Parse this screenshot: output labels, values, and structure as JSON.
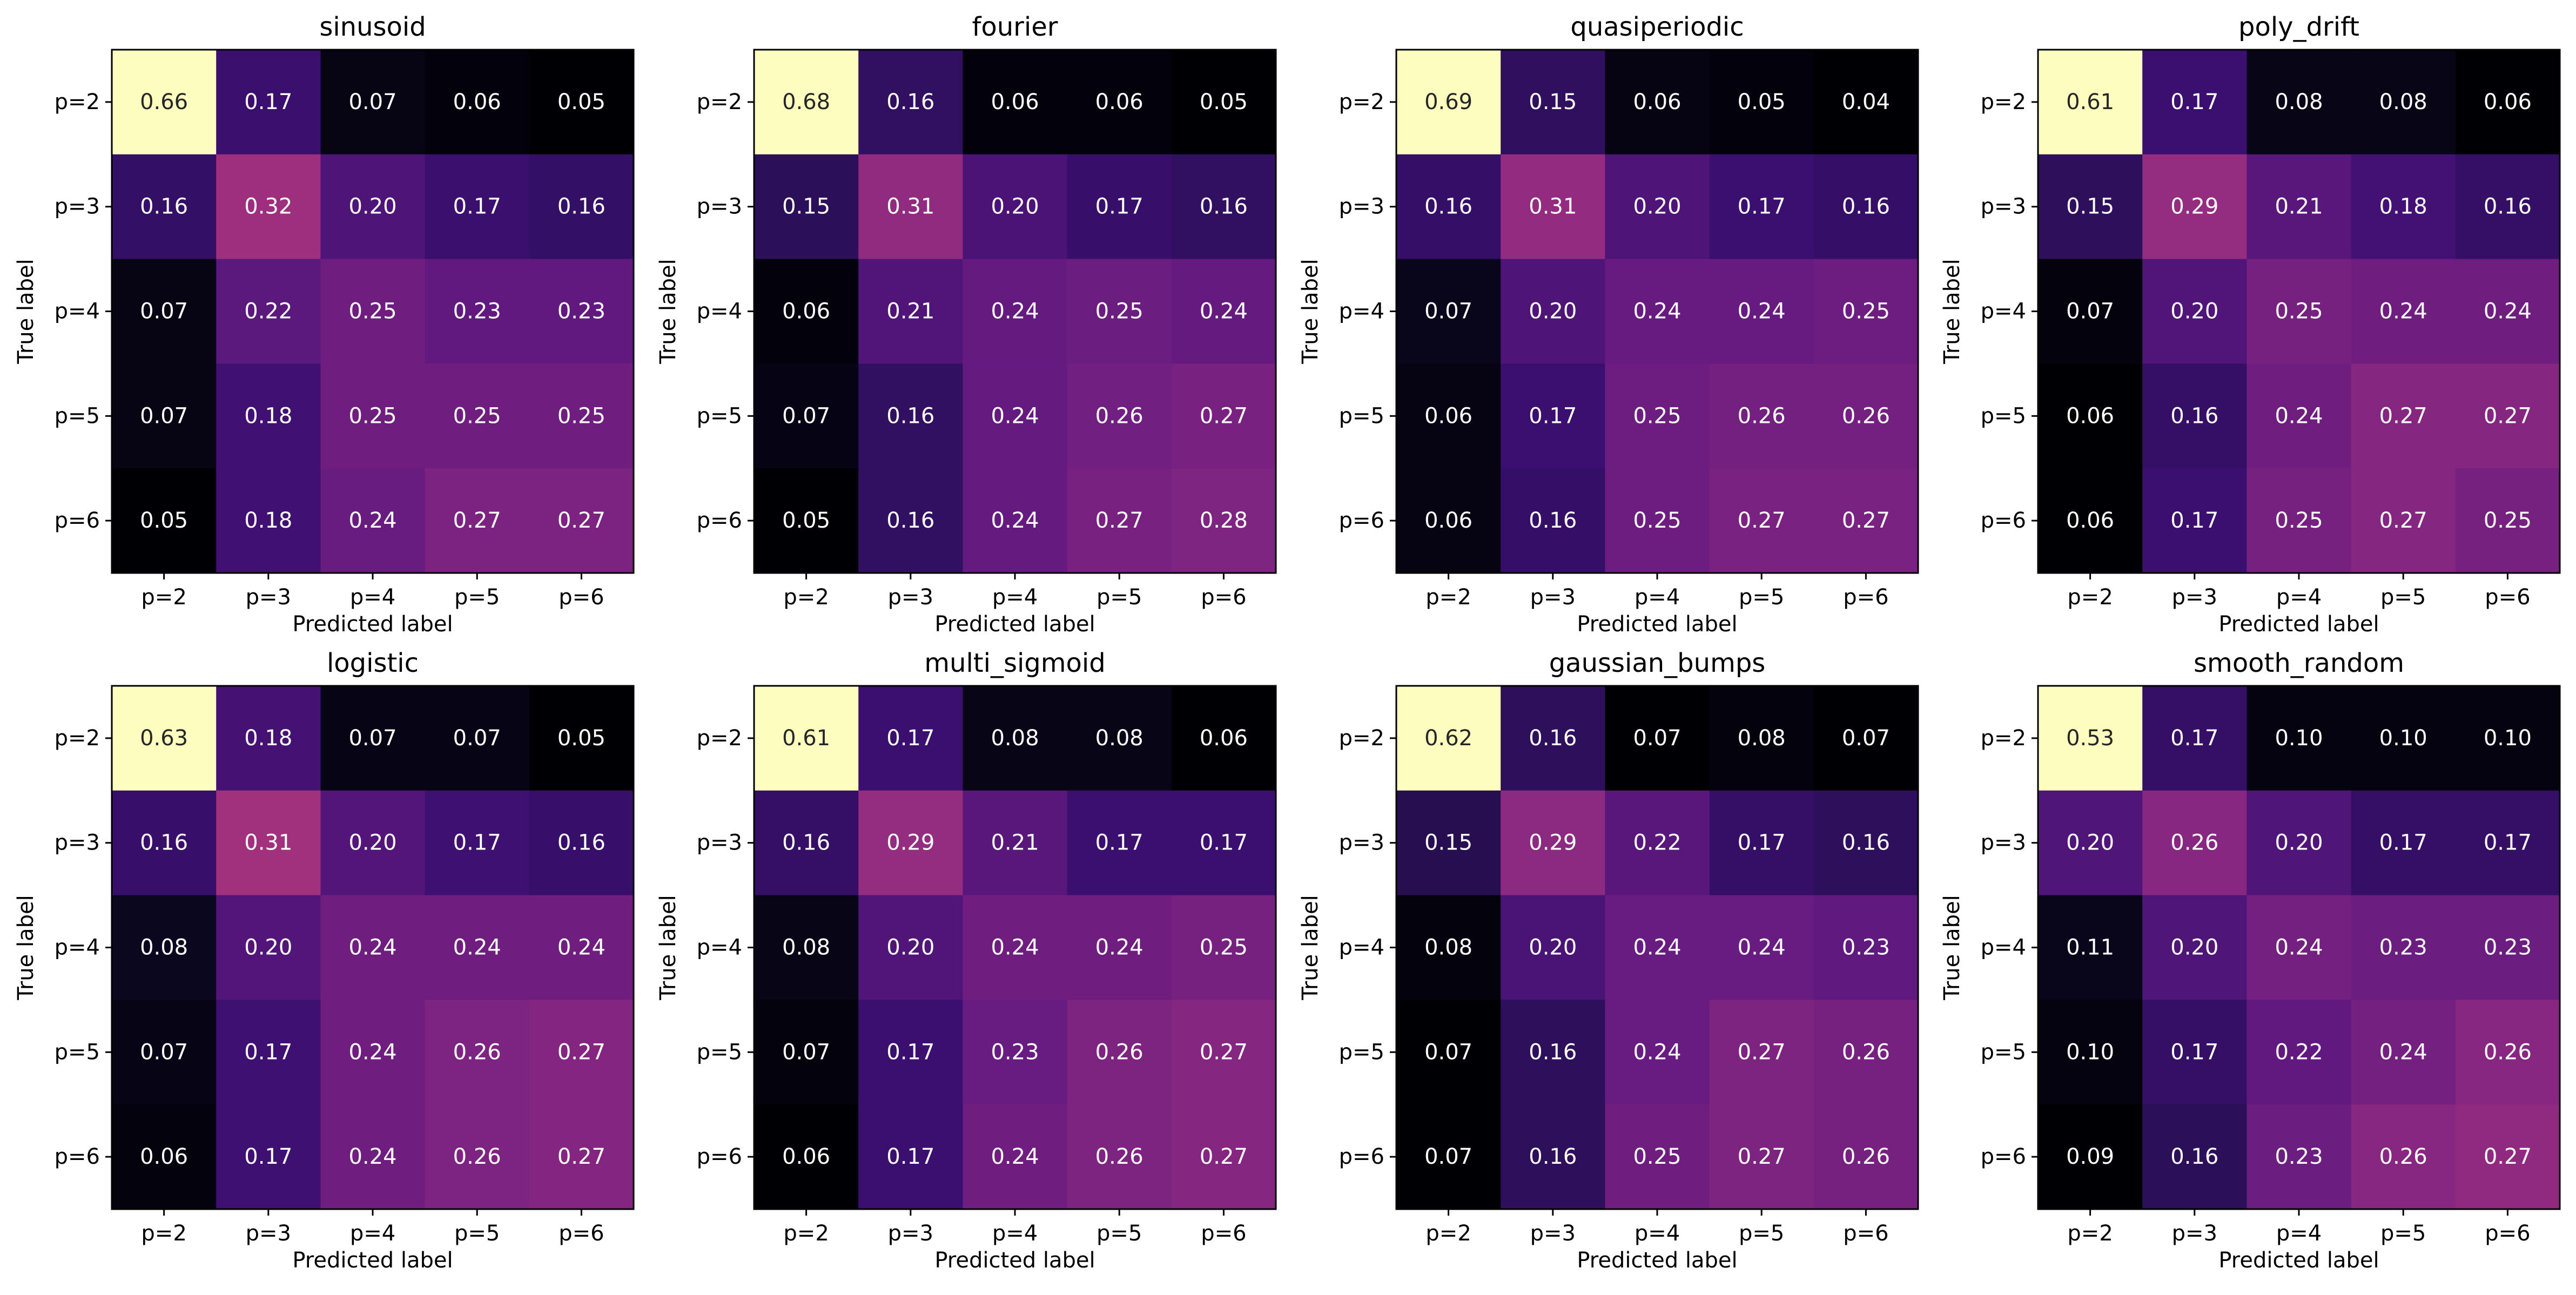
{
  "chart_data": [
    {
      "type": "heatmap",
      "title": "sinusoid",
      "xlabel": "Predicted label",
      "ylabel": "True label",
      "x_categories": [
        "p=2",
        "p=3",
        "p=4",
        "p=5",
        "p=6"
      ],
      "y_categories": [
        "p=2",
        "p=3",
        "p=4",
        "p=5",
        "p=6"
      ],
      "values": [
        [
          0.66,
          0.17,
          0.07,
          0.06,
          0.05
        ],
        [
          0.16,
          0.32,
          0.2,
          0.17,
          0.16
        ],
        [
          0.07,
          0.22,
          0.25,
          0.23,
          0.23
        ],
        [
          0.07,
          0.18,
          0.25,
          0.25,
          0.25
        ],
        [
          0.05,
          0.18,
          0.24,
          0.27,
          0.27
        ]
      ],
      "colormap": "magma",
      "value_format": "0.00"
    },
    {
      "type": "heatmap",
      "title": "fourier",
      "xlabel": "Predicted label",
      "ylabel": "True label",
      "x_categories": [
        "p=2",
        "p=3",
        "p=4",
        "p=5",
        "p=6"
      ],
      "y_categories": [
        "p=2",
        "p=3",
        "p=4",
        "p=5",
        "p=6"
      ],
      "values": [
        [
          0.68,
          0.16,
          0.06,
          0.06,
          0.05
        ],
        [
          0.15,
          0.31,
          0.2,
          0.17,
          0.16
        ],
        [
          0.06,
          0.21,
          0.24,
          0.25,
          0.24
        ],
        [
          0.07,
          0.16,
          0.24,
          0.26,
          0.27
        ],
        [
          0.05,
          0.16,
          0.24,
          0.27,
          0.28
        ]
      ],
      "colormap": "magma",
      "value_format": "0.00"
    },
    {
      "type": "heatmap",
      "title": "quasiperiodic",
      "xlabel": "Predicted label",
      "ylabel": "True label",
      "x_categories": [
        "p=2",
        "p=3",
        "p=4",
        "p=5",
        "p=6"
      ],
      "y_categories": [
        "p=2",
        "p=3",
        "p=4",
        "p=5",
        "p=6"
      ],
      "values": [
        [
          0.69,
          0.15,
          0.06,
          0.05,
          0.04
        ],
        [
          0.16,
          0.31,
          0.2,
          0.17,
          0.16
        ],
        [
          0.07,
          0.2,
          0.24,
          0.24,
          0.25
        ],
        [
          0.06,
          0.17,
          0.25,
          0.26,
          0.26
        ],
        [
          0.06,
          0.16,
          0.25,
          0.27,
          0.27
        ]
      ],
      "colormap": "magma",
      "value_format": "0.00"
    },
    {
      "type": "heatmap",
      "title": "poly_drift",
      "xlabel": "Predicted label",
      "ylabel": "True label",
      "x_categories": [
        "p=2",
        "p=3",
        "p=4",
        "p=5",
        "p=6"
      ],
      "y_categories": [
        "p=2",
        "p=3",
        "p=4",
        "p=5",
        "p=6"
      ],
      "values": [
        [
          0.61,
          0.17,
          0.08,
          0.08,
          0.06
        ],
        [
          0.15,
          0.29,
          0.21,
          0.18,
          0.16
        ],
        [
          0.07,
          0.2,
          0.25,
          0.24,
          0.24
        ],
        [
          0.06,
          0.16,
          0.24,
          0.27,
          0.27
        ],
        [
          0.06,
          0.17,
          0.25,
          0.27,
          0.25
        ]
      ],
      "colormap": "magma",
      "value_format": "0.00"
    },
    {
      "type": "heatmap",
      "title": "logistic",
      "xlabel": "Predicted label",
      "ylabel": "True label",
      "x_categories": [
        "p=2",
        "p=3",
        "p=4",
        "p=5",
        "p=6"
      ],
      "y_categories": [
        "p=2",
        "p=3",
        "p=4",
        "p=5",
        "p=6"
      ],
      "values": [
        [
          0.63,
          0.18,
          0.07,
          0.07,
          0.05
        ],
        [
          0.16,
          0.31,
          0.2,
          0.17,
          0.16
        ],
        [
          0.08,
          0.2,
          0.24,
          0.24,
          0.24
        ],
        [
          0.07,
          0.17,
          0.24,
          0.26,
          0.27
        ],
        [
          0.06,
          0.17,
          0.24,
          0.26,
          0.27
        ]
      ],
      "colormap": "magma",
      "value_format": "0.00"
    },
    {
      "type": "heatmap",
      "title": "multi_sigmoid",
      "xlabel": "Predicted label",
      "ylabel": "True label",
      "x_categories": [
        "p=2",
        "p=3",
        "p=4",
        "p=5",
        "p=6"
      ],
      "y_categories": [
        "p=2",
        "p=3",
        "p=4",
        "p=5",
        "p=6"
      ],
      "values": [
        [
          0.61,
          0.17,
          0.08,
          0.08,
          0.06
        ],
        [
          0.16,
          0.29,
          0.21,
          0.17,
          0.17
        ],
        [
          0.08,
          0.2,
          0.24,
          0.24,
          0.25
        ],
        [
          0.07,
          0.17,
          0.23,
          0.26,
          0.27
        ],
        [
          0.06,
          0.17,
          0.24,
          0.26,
          0.27
        ]
      ],
      "colormap": "magma",
      "value_format": "0.00"
    },
    {
      "type": "heatmap",
      "title": "gaussian_bumps",
      "xlabel": "Predicted label",
      "ylabel": "True label",
      "x_categories": [
        "p=2",
        "p=3",
        "p=4",
        "p=5",
        "p=6"
      ],
      "y_categories": [
        "p=2",
        "p=3",
        "p=4",
        "p=5",
        "p=6"
      ],
      "values": [
        [
          0.62,
          0.16,
          0.07,
          0.08,
          0.07
        ],
        [
          0.15,
          0.29,
          0.22,
          0.17,
          0.16
        ],
        [
          0.08,
          0.2,
          0.24,
          0.24,
          0.23
        ],
        [
          0.07,
          0.16,
          0.24,
          0.27,
          0.26
        ],
        [
          0.07,
          0.16,
          0.25,
          0.27,
          0.26
        ]
      ],
      "colormap": "magma",
      "value_format": "0.00"
    },
    {
      "type": "heatmap",
      "title": "smooth_random",
      "xlabel": "Predicted label",
      "ylabel": "True label",
      "x_categories": [
        "p=2",
        "p=3",
        "p=4",
        "p=5",
        "p=6"
      ],
      "y_categories": [
        "p=2",
        "p=3",
        "p=4",
        "p=5",
        "p=6"
      ],
      "values": [
        [
          0.53,
          0.17,
          0.1,
          0.1,
          0.1
        ],
        [
          0.2,
          0.26,
          0.2,
          0.17,
          0.17
        ],
        [
          0.11,
          0.2,
          0.24,
          0.23,
          0.23
        ],
        [
          0.1,
          0.17,
          0.22,
          0.24,
          0.26
        ],
        [
          0.09,
          0.16,
          0.23,
          0.26,
          0.27
        ]
      ],
      "colormap": "magma",
      "value_format": "0.00"
    }
  ]
}
